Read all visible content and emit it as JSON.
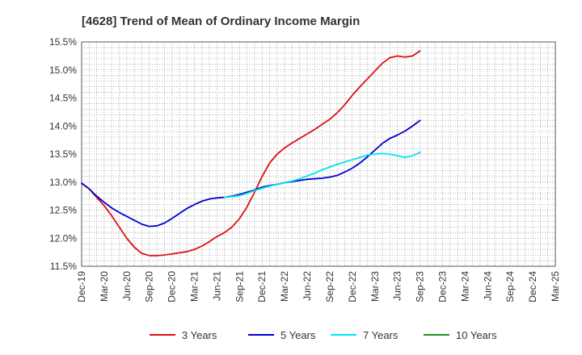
{
  "chart_data": {
    "type": "line",
    "title": "[4628]  Trend of Mean of Ordinary Income Margin",
    "xlabel": "",
    "ylabel": "",
    "ylim": [
      11.5,
      15.5
    ],
    "y_ticks": [
      "11.5%",
      "12.0%",
      "12.5%",
      "13.0%",
      "13.5%",
      "14.0%",
      "14.5%",
      "15.0%",
      "15.5%"
    ],
    "x_ticks": [
      "Dec-19",
      "Mar-20",
      "Jun-20",
      "Sep-20",
      "Dec-20",
      "Mar-21",
      "Jun-21",
      "Sep-21",
      "Dec-21",
      "Mar-22",
      "Jun-22",
      "Sep-22",
      "Dec-22",
      "Mar-23",
      "Jun-23",
      "Sep-23",
      "Dec-23",
      "Mar-24",
      "Jun-24",
      "Sep-24",
      "Dec-24",
      "Mar-25"
    ],
    "grid": true,
    "legend_position": "bottom",
    "series": [
      {
        "name": "3 Years",
        "color": "#dd1111",
        "points": [
          [
            0,
            12.98
          ],
          [
            1,
            12.88
          ],
          [
            2,
            12.73
          ],
          [
            3,
            12.58
          ],
          [
            4,
            12.4
          ],
          [
            5,
            12.2
          ],
          [
            6,
            12.0
          ],
          [
            7,
            11.84
          ],
          [
            8,
            11.73
          ],
          [
            9,
            11.69
          ],
          [
            10,
            11.69
          ],
          [
            11,
            11.7
          ],
          [
            12,
            11.72
          ],
          [
            13,
            11.74
          ],
          [
            14,
            11.76
          ],
          [
            15,
            11.8
          ],
          [
            16,
            11.86
          ],
          [
            17,
            11.94
          ],
          [
            18,
            12.03
          ],
          [
            19,
            12.1
          ],
          [
            20,
            12.2
          ],
          [
            21,
            12.35
          ],
          [
            22,
            12.56
          ],
          [
            23,
            12.82
          ],
          [
            24,
            13.1
          ],
          [
            25,
            13.34
          ],
          [
            26,
            13.5
          ],
          [
            27,
            13.61
          ],
          [
            28,
            13.7
          ],
          [
            29,
            13.78
          ],
          [
            30,
            13.86
          ],
          [
            31,
            13.94
          ],
          [
            32,
            14.03
          ],
          [
            33,
            14.12
          ],
          [
            34,
            14.24
          ],
          [
            35,
            14.38
          ],
          [
            36,
            14.55
          ],
          [
            37,
            14.7
          ],
          [
            38,
            14.84
          ],
          [
            39,
            14.98
          ],
          [
            40,
            15.12
          ],
          [
            41,
            15.22
          ],
          [
            42,
            15.25
          ],
          [
            43,
            15.23
          ],
          [
            44,
            15.25
          ],
          [
            45,
            15.34
          ]
        ]
      },
      {
        "name": "5 Years",
        "color": "#0000cc",
        "points": [
          [
            0,
            12.98
          ],
          [
            1,
            12.88
          ],
          [
            2,
            12.75
          ],
          [
            3,
            12.64
          ],
          [
            4,
            12.54
          ],
          [
            5,
            12.46
          ],
          [
            6,
            12.39
          ],
          [
            7,
            12.32
          ],
          [
            8,
            12.25
          ],
          [
            9,
            12.21
          ],
          [
            10,
            12.22
          ],
          [
            11,
            12.27
          ],
          [
            12,
            12.35
          ],
          [
            13,
            12.44
          ],
          [
            14,
            12.53
          ],
          [
            15,
            12.6
          ],
          [
            16,
            12.66
          ],
          [
            17,
            12.7
          ],
          [
            18,
            12.72
          ],
          [
            19,
            12.73
          ],
          [
            20,
            12.75
          ],
          [
            21,
            12.78
          ],
          [
            22,
            12.82
          ],
          [
            23,
            12.86
          ],
          [
            24,
            12.91
          ],
          [
            25,
            12.94
          ],
          [
            26,
            12.96
          ],
          [
            27,
            12.99
          ],
          [
            28,
            13.01
          ],
          [
            29,
            13.03
          ],
          [
            30,
            13.05
          ],
          [
            31,
            13.06
          ],
          [
            32,
            13.07
          ],
          [
            33,
            13.09
          ],
          [
            34,
            13.12
          ],
          [
            35,
            13.18
          ],
          [
            36,
            13.25
          ],
          [
            37,
            13.34
          ],
          [
            38,
            13.45
          ],
          [
            39,
            13.57
          ],
          [
            40,
            13.69
          ],
          [
            41,
            13.78
          ],
          [
            42,
            13.84
          ],
          [
            43,
            13.91
          ],
          [
            44,
            14.0
          ],
          [
            45,
            14.1
          ]
        ]
      },
      {
        "name": "7 Years",
        "color": "#00e5ee",
        "points": [
          [
            19,
            12.73
          ],
          [
            20,
            12.74
          ],
          [
            21,
            12.76
          ],
          [
            22,
            12.8
          ],
          [
            23,
            12.85
          ],
          [
            24,
            12.89
          ],
          [
            25,
            12.93
          ],
          [
            26,
            12.96
          ],
          [
            27,
            12.99
          ],
          [
            28,
            13.02
          ],
          [
            29,
            13.06
          ],
          [
            30,
            13.11
          ],
          [
            31,
            13.16
          ],
          [
            32,
            13.22
          ],
          [
            33,
            13.27
          ],
          [
            34,
            13.32
          ],
          [
            35,
            13.36
          ],
          [
            36,
            13.4
          ],
          [
            37,
            13.44
          ],
          [
            38,
            13.48
          ],
          [
            39,
            13.5
          ],
          [
            40,
            13.51
          ],
          [
            41,
            13.5
          ],
          [
            42,
            13.47
          ],
          [
            43,
            13.44
          ],
          [
            44,
            13.47
          ],
          [
            45,
            13.53
          ]
        ]
      },
      {
        "name": "10 Years",
        "color": "#228b22",
        "points": []
      }
    ]
  }
}
